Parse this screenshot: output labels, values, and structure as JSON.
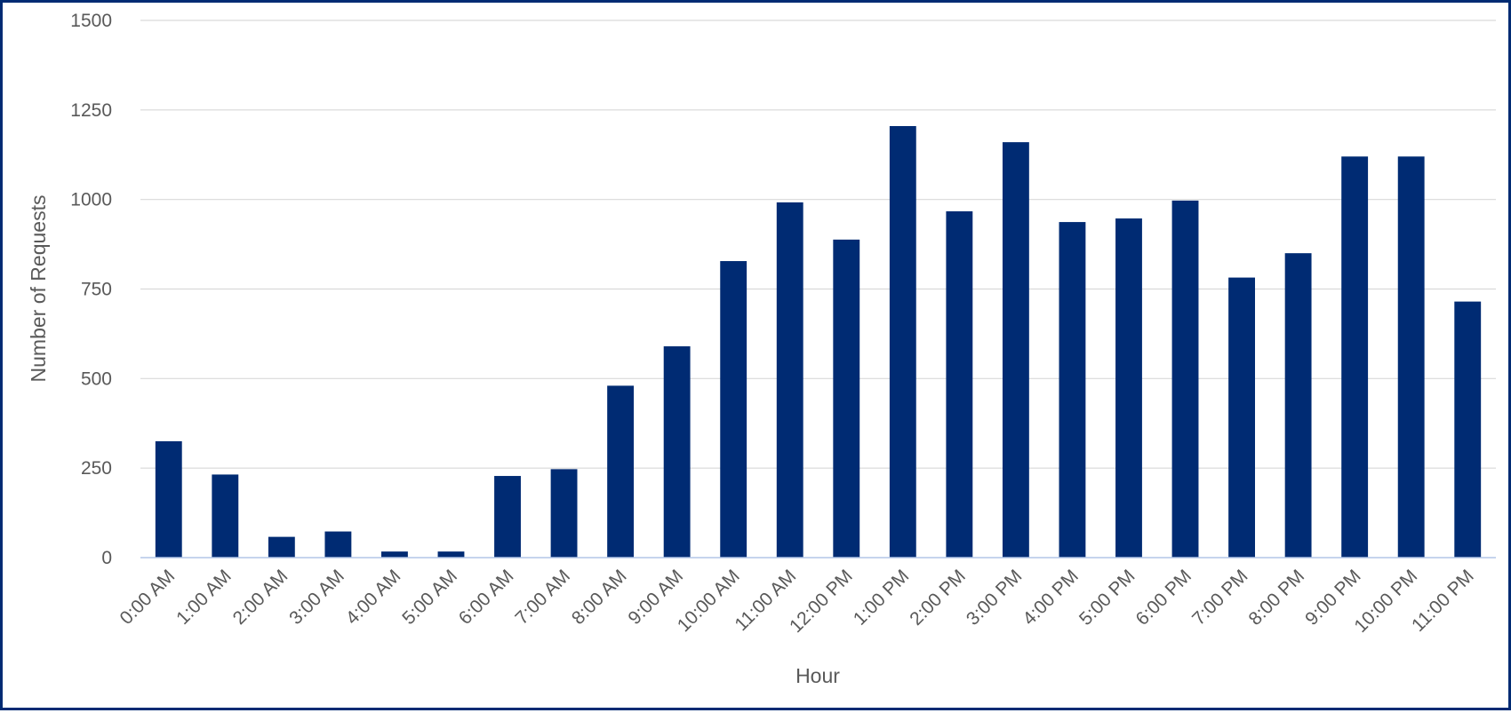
{
  "chart_data": {
    "type": "bar",
    "xlabel": "Hour",
    "ylabel": "Number of Requests",
    "ylim": [
      0,
      1500
    ],
    "yticks": [
      0,
      250,
      500,
      750,
      1000,
      1250,
      1500
    ],
    "grid": true,
    "legend": "none",
    "bar_color": "#002b73",
    "categories": [
      "0:00 AM",
      "1:00 AM",
      "2:00 AM",
      "3:00 AM",
      "4:00 AM",
      "5:00 AM",
      "6:00 AM",
      "7:00 AM",
      "8:00 AM",
      "9:00 AM",
      "10:00 AM",
      "11:00 AM",
      "12:00 PM",
      "1:00 PM",
      "2:00 PM",
      "3:00 PM",
      "4:00 PM",
      "5:00 PM",
      "6:00 PM",
      "7:00 PM",
      "8:00 PM",
      "9:00 PM",
      "10:00 PM",
      "11:00 PM"
    ],
    "values": [
      325,
      232,
      58,
      73,
      17,
      17,
      228,
      247,
      480,
      590,
      828,
      992,
      888,
      1205,
      967,
      1160,
      937,
      947,
      997,
      782,
      850,
      1120,
      1120,
      715
    ]
  }
}
